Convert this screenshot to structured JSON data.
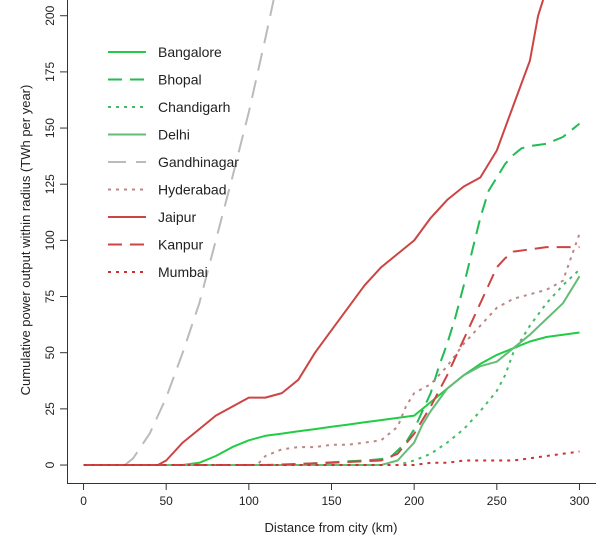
{
  "chart_data": {
    "type": "line",
    "xlabel": "Distance from city (km)",
    "ylabel": "Cumulative power output within radius (TWh per year)",
    "xlim": [
      -10,
      310
    ],
    "ylim": [
      -8,
      207
    ],
    "x_ticks": [
      "0",
      "50",
      "100",
      "150",
      "200",
      "250",
      "300"
    ],
    "y_ticks": [
      "0",
      "25",
      "50",
      "75",
      "100",
      "125",
      "150",
      "175",
      "200"
    ],
    "grid": false,
    "legend_position": "top-left",
    "series": [
      {
        "name": "Bangalore",
        "color": "#22cc44",
        "dash": "solid",
        "x": [
          0,
          60,
          70,
          80,
          90,
          100,
          110,
          120,
          130,
          140,
          150,
          160,
          170,
          180,
          190,
          200,
          210,
          220,
          230,
          240,
          250,
          260,
          270,
          280,
          290,
          300
        ],
        "y": [
          0,
          0,
          1,
          4,
          8,
          11,
          13,
          14,
          15,
          16,
          17,
          18,
          19,
          20,
          21,
          22,
          28,
          34,
          40,
          45,
          49,
          52,
          55,
          57,
          58,
          59
        ]
      },
      {
        "name": "Bhopal",
        "color": "#22bb55",
        "dash": "long",
        "x": [
          0,
          120,
          170,
          185,
          195,
          200,
          205,
          210,
          215,
          220,
          225,
          230,
          235,
          240,
          245,
          250,
          255,
          260,
          265,
          270,
          280,
          290,
          300
        ],
        "y": [
          0,
          0,
          2,
          3,
          10,
          16,
          24,
          32,
          44,
          54,
          66,
          80,
          95,
          110,
          122,
          128,
          134,
          138,
          141,
          142,
          143,
          146,
          152
        ]
      },
      {
        "name": "Chandigarh",
        "color": "#44bb66",
        "dash": "dotted",
        "x": [
          0,
          190,
          200,
          210,
          220,
          230,
          240,
          250,
          255,
          260,
          270,
          280,
          290,
          300
        ],
        "y": [
          0,
          0,
          2,
          5,
          10,
          16,
          24,
          33,
          40,
          50,
          62,
          72,
          80,
          87
        ]
      },
      {
        "name": "Delhi",
        "color": "#66bb77",
        "dash": "solid",
        "x": [
          0,
          180,
          190,
          200,
          205,
          210,
          220,
          230,
          240,
          250,
          260,
          270,
          280,
          290,
          300
        ],
        "y": [
          0,
          0,
          2,
          10,
          18,
          24,
          34,
          40,
          44,
          46,
          52,
          58,
          65,
          72,
          84
        ]
      },
      {
        "name": "Gandhinagar",
        "color": "#bbbbbb",
        "dash": "longdash",
        "x": [
          25,
          30,
          40,
          50,
          60,
          70,
          80,
          90,
          100,
          110,
          115
        ],
        "y": [
          0,
          3,
          14,
          30,
          50,
          72,
          100,
          128,
          157,
          190,
          207
        ]
      },
      {
        "name": "Hyderabad",
        "color": "#bb8888",
        "dash": "dotted",
        "x": [
          0,
          105,
          110,
          120,
          130,
          140,
          150,
          160,
          170,
          180,
          190,
          195,
          200,
          210,
          220,
          230,
          240,
          250,
          260,
          270,
          280,
          290,
          300
        ],
        "y": [
          0,
          0,
          4,
          7,
          8,
          8,
          9,
          9,
          10,
          11,
          17,
          26,
          32,
          36,
          44,
          54,
          62,
          70,
          74,
          76,
          78,
          82,
          103
        ]
      },
      {
        "name": "Jaipur",
        "color": "#cc4444",
        "dash": "solid",
        "x": [
          0,
          45,
          50,
          55,
          60,
          70,
          80,
          90,
          100,
          110,
          120,
          130,
          140,
          150,
          160,
          170,
          180,
          190,
          200,
          210,
          220,
          230,
          240,
          250,
          260,
          270,
          275,
          278
        ],
        "y": [
          0,
          0,
          2,
          6,
          10,
          16,
          22,
          26,
          30,
          30,
          32,
          38,
          50,
          60,
          70,
          80,
          88,
          94,
          100,
          110,
          118,
          124,
          128,
          140,
          160,
          180,
          200,
          207
        ]
      },
      {
        "name": "Kanpur",
        "color": "#cc4444",
        "dash": "long",
        "x": [
          0,
          110,
          150,
          180,
          190,
          200,
          210,
          220,
          230,
          240,
          250,
          255,
          260,
          270,
          280,
          290,
          300
        ],
        "y": [
          0,
          0,
          1,
          2,
          5,
          14,
          26,
          40,
          56,
          72,
          88,
          92,
          95,
          96,
          97,
          97,
          97
        ]
      },
      {
        "name": "Mumbai",
        "color": "#cc3333",
        "dash": "dotted",
        "x": [
          0,
          200,
          210,
          220,
          230,
          240,
          250,
          260,
          270,
          280,
          290,
          300
        ],
        "y": [
          0,
          0,
          1,
          1,
          2,
          2,
          2,
          2,
          3,
          4,
          5,
          6
        ]
      }
    ]
  }
}
